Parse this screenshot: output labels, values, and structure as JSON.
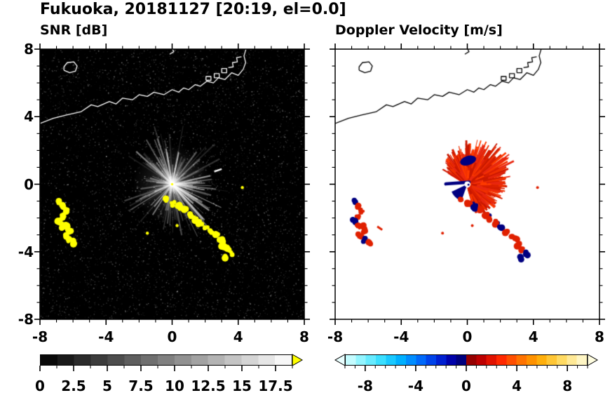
{
  "figure": {
    "title": "Fukuoka, 20181127 [20:19, el=0.0]"
  },
  "panels": [
    {
      "id": "snr",
      "title": "SNR [dB]"
    },
    {
      "id": "doppler",
      "title": "Doppler Velocity [m/s]"
    }
  ],
  "axes": {
    "xlim": [
      -8,
      8
    ],
    "ylim": [
      -8,
      8
    ],
    "major_ticks": [
      -8,
      -4,
      0,
      4,
      8
    ],
    "minor_tick_step": 1,
    "xtick_labels": [
      "-8",
      "-4",
      "0",
      "4",
      "8"
    ],
    "ytick_labels": [
      "8",
      "4",
      "0",
      "-4",
      "-8"
    ]
  },
  "colorbars": [
    {
      "id": "snr",
      "min": 0,
      "max": 18.75,
      "segments": 15,
      "minor_step": 1.25,
      "tick_values": [
        0,
        2.5,
        5,
        7.5,
        10,
        12.5,
        15,
        17.5
      ],
      "tick_labels": [
        "0",
        "2.5",
        "5",
        "7.5",
        "10",
        "12.5",
        "15",
        "17.5"
      ],
      "stops": [
        [
          0,
          "#000000"
        ],
        [
          1,
          "#ffffff"
        ]
      ],
      "arrow_right": "#ffff00"
    },
    {
      "id": "doppler",
      "min": -9.6,
      "max": 9.6,
      "segments": 24,
      "minor_step": 0.8,
      "tick_values": [
        -8,
        -4,
        0,
        4,
        8
      ],
      "tick_labels": [
        "-8",
        "-4",
        "0",
        "4",
        "8"
      ],
      "stops": [
        [
          0,
          "#dcffff"
        ],
        [
          0.06,
          "#96f6ff"
        ],
        [
          0.14,
          "#40e2ff"
        ],
        [
          0.22,
          "#00b8ff"
        ],
        [
          0.3,
          "#0074ff"
        ],
        [
          0.38,
          "#002ce0"
        ],
        [
          0.44,
          "#0000a8"
        ],
        [
          0.49,
          "#000072"
        ],
        [
          0.51,
          "#8c0000"
        ],
        [
          0.57,
          "#c40000"
        ],
        [
          0.64,
          "#ff2400"
        ],
        [
          0.72,
          "#ff6c00"
        ],
        [
          0.8,
          "#ffa800"
        ],
        [
          0.88,
          "#ffd44e"
        ],
        [
          0.95,
          "#ffeda6"
        ],
        [
          1,
          "#fffdda"
        ]
      ],
      "arrow_left": "#eaffff",
      "arrow_right": "#fffde0"
    }
  ],
  "coast": {
    "main": [
      [
        -8.0,
        3.6
      ],
      [
        -7.2,
        3.9
      ],
      [
        -6.4,
        4.1
      ],
      [
        -5.5,
        4.3
      ],
      [
        -4.9,
        4.7
      ],
      [
        -4.5,
        4.6
      ],
      [
        -3.8,
        4.9
      ],
      [
        -3.4,
        4.75
      ],
      [
        -3.0,
        5.1
      ],
      [
        -2.4,
        5.0
      ],
      [
        -2.0,
        5.3
      ],
      [
        -1.5,
        5.2
      ],
      [
        -1.1,
        5.45
      ],
      [
        -0.5,
        5.3
      ],
      [
        0.0,
        5.6
      ],
      [
        0.4,
        5.45
      ],
      [
        0.7,
        5.7
      ],
      [
        1.0,
        5.6
      ],
      [
        1.4,
        5.9
      ],
      [
        1.7,
        5.8
      ],
      [
        2.1,
        6.1
      ],
      [
        2.5,
        6.0
      ],
      [
        2.8,
        6.3
      ],
      [
        3.2,
        6.2
      ],
      [
        3.6,
        6.6
      ],
      [
        4.0,
        6.45
      ],
      [
        4.3,
        6.8
      ],
      [
        4.45,
        7.2
      ],
      [
        4.35,
        7.6
      ],
      [
        4.5,
        8.1
      ]
    ],
    "island": [
      [
        -6.55,
        6.75
      ],
      [
        -6.2,
        6.6
      ],
      [
        -5.85,
        6.7
      ],
      [
        -5.75,
        7.0
      ],
      [
        -5.95,
        7.25
      ],
      [
        -6.35,
        7.2
      ],
      [
        -6.55,
        6.95
      ],
      [
        -6.55,
        6.75
      ]
    ],
    "islet": [
      [
        -0.15,
        7.7
      ],
      [
        0.1,
        7.85
      ],
      [
        0.0,
        8.05
      ]
    ],
    "piers": [
      [
        [
          2.05,
          6.15
        ],
        [
          2.35,
          6.15
        ],
        [
          2.35,
          6.38
        ],
        [
          2.05,
          6.38
        ],
        [
          2.05,
          6.15
        ]
      ],
      [
        [
          2.55,
          6.3
        ],
        [
          2.85,
          6.3
        ],
        [
          2.85,
          6.55
        ],
        [
          2.55,
          6.55
        ],
        [
          2.55,
          6.3
        ]
      ],
      [
        [
          3.0,
          6.6
        ],
        [
          3.3,
          6.6
        ],
        [
          3.3,
          6.85
        ],
        [
          3.0,
          6.85
        ],
        [
          3.0,
          6.6
        ]
      ],
      [
        [
          3.4,
          6.9
        ],
        [
          3.7,
          6.95
        ],
        [
          3.65,
          7.2
        ],
        [
          3.95,
          7.25
        ],
        [
          3.9,
          7.5
        ],
        [
          4.2,
          7.55
        ]
      ]
    ]
  },
  "chart_data": [
    {
      "type": "heatmap",
      "name": "SNR",
      "units": "dB",
      "title": "SNR [dB]",
      "xlim": [
        -8,
        8
      ],
      "ylim": [
        -8,
        8
      ],
      "background": "#000000",
      "colormap": {
        "type": "grayscale",
        "min": 0,
        "max": 17.5,
        "over": "#ffff00"
      },
      "radar_location": [
        0,
        0
      ],
      "echo_features": {
        "noise_density": 5200,
        "glow_radius": 2.4,
        "streaks": {
          "count": 150,
          "max_r": 3.2
        },
        "bright_dash": [
          [
            2.55,
            0.75
          ],
          [
            3.0,
            0.9
          ]
        ],
        "arc_main": [
          [
            -0.35,
            -0.9
          ],
          [
            0.05,
            -1.15
          ],
          [
            0.45,
            -1.35
          ],
          [
            0.8,
            -1.55
          ],
          [
            1.15,
            -1.8
          ],
          [
            1.4,
            -2.05
          ],
          [
            1.7,
            -2.3
          ],
          [
            2.05,
            -2.6
          ],
          [
            2.4,
            -2.85
          ],
          [
            2.7,
            -3.05
          ],
          [
            2.95,
            -3.3
          ],
          [
            3.1,
            -3.6
          ],
          [
            3.35,
            -3.85
          ],
          [
            3.55,
            -4.1
          ],
          [
            3.3,
            -4.35
          ]
        ],
        "arc_west": [
          [
            -6.85,
            -1.05
          ],
          [
            -6.55,
            -1.3
          ],
          [
            -6.4,
            -1.6
          ],
          [
            -6.65,
            -1.9
          ],
          [
            -6.85,
            -2.2
          ],
          [
            -6.6,
            -2.5
          ],
          [
            -6.35,
            -2.45
          ],
          [
            -6.2,
            -2.75
          ],
          [
            -6.5,
            -3.05
          ],
          [
            -6.25,
            -3.3
          ],
          [
            -5.95,
            -3.45
          ]
        ],
        "specks": [
          [
            -1.5,
            -2.9
          ],
          [
            0.3,
            -2.45
          ],
          [
            4.25,
            -0.2
          ]
        ]
      }
    },
    {
      "type": "heatmap",
      "name": "Doppler Velocity",
      "units": "m/s",
      "title": "Doppler Velocity [m/s]",
      "xlim": [
        -8,
        8
      ],
      "ylim": [
        -8,
        8
      ],
      "background": "#ffffff",
      "colormap": {
        "type": "doppler",
        "min": -9.6,
        "max": 9.6
      },
      "echo_features": {
        "fan_profile": [
          [
            -75,
            1.5
          ],
          [
            -35,
            1.9
          ],
          [
            0,
            2.2
          ],
          [
            30,
            2.9
          ],
          [
            75,
            2.6
          ],
          [
            110,
            2.0
          ],
          [
            150,
            1.6
          ]
        ],
        "spike_count": 520,
        "red_colors": [
          "#d81e00",
          "#f03000",
          "#e82710",
          "#c81800",
          "#ff3b00"
        ],
        "navy_color": "#000080",
        "navy_wedge": {
          "a1": 205,
          "a2": 250,
          "r": 1.05
        },
        "navy_dash": [
          [
            0.1,
            0.12
          ],
          [
            -1.3,
            0.02
          ]
        ],
        "navy_patch": [
          0.05,
          1.4,
          0.5,
          0.28
        ],
        "navy_dots": [
          [
            1.35,
            -1.85
          ],
          [
            1.85,
            -2.3
          ],
          [
            0.35,
            -1.15
          ]
        ],
        "arc_main_navy_indices": [
          2,
          7,
          13,
          14
        ],
        "arc_west_navy_indices": [
          0,
          4,
          9
        ],
        "red_dash": [
          [
            -5.45,
            -2.5
          ],
          [
            -5.15,
            -2.7
          ]
        ],
        "center_hole_radius": 0.17
      }
    }
  ]
}
